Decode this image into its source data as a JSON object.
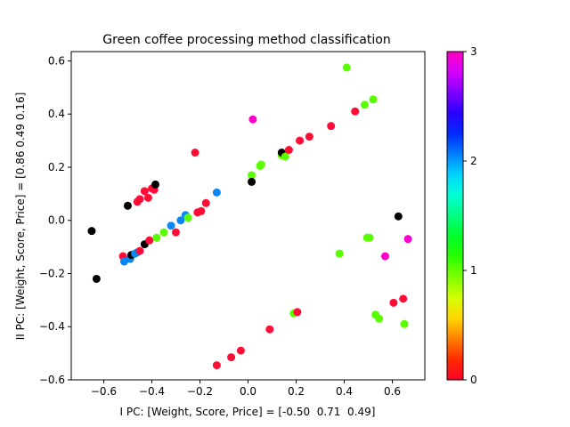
{
  "chart_data": {
    "type": "scatter",
    "title": "Green coffee processing method classification",
    "xlabel": "I PC: [Weight, Score, Price] = [-0.50  0.71  0.49]",
    "ylabel": "II PC: [Weight, Score, Price] = [0.86 0.49 0.16]",
    "xlim": [
      -0.735,
      0.735
    ],
    "ylim": [
      -0.6,
      0.635
    ],
    "xticks": [
      -0.6,
      -0.4,
      -0.2,
      0.0,
      0.2,
      0.4,
      0.6
    ],
    "xtick_labels": [
      "−0.6",
      "−0.4",
      "−0.2",
      "0.0",
      "0.2",
      "0.4",
      "0.6"
    ],
    "yticks": [
      -0.6,
      -0.4,
      -0.2,
      0.0,
      0.2,
      0.4,
      0.6
    ],
    "ytick_labels": [
      "−0.6",
      "−0.4",
      "−0.2",
      "0.0",
      "0.2",
      "0.4",
      "0.6"
    ],
    "grid": false,
    "colorbar": {
      "min": 0,
      "max": 3,
      "ticks": [
        0,
        1,
        2,
        3
      ],
      "tick_labels": [
        "0",
        "1",
        "2",
        "3"
      ],
      "colormap": "gist_rainbow",
      "stops": [
        "#ff0029",
        "#ff2a00",
        "#ff8000",
        "#ffd500",
        "#d4ff00",
        "#7fff00",
        "#29ff00",
        "#00ff2b",
        "#00ff80",
        "#00ffd5",
        "#00d4ff",
        "#007fff",
        "#002aff",
        "#2a00ff",
        "#7f00ff",
        "#d500ff",
        "#ff00bf"
      ]
    },
    "marker_colors": {
      "0": "#ff0d37",
      "1": "#59ff00",
      "2": "#0a86f5",
      "3": "#ff00cc",
      "other": "#000000"
    },
    "points": [
      {
        "x": -0.65,
        "y": -0.04,
        "c": "other"
      },
      {
        "x": -0.63,
        "y": -0.22,
        "c": "other"
      },
      {
        "x": -0.52,
        "y": -0.135,
        "c": 0
      },
      {
        "x": -0.515,
        "y": -0.155,
        "c": 2
      },
      {
        "x": -0.5,
        "y": 0.055,
        "c": "other"
      },
      {
        "x": -0.49,
        "y": -0.145,
        "c": 2
      },
      {
        "x": -0.485,
        "y": -0.13,
        "c": "other"
      },
      {
        "x": -0.47,
        "y": -0.125,
        "c": 2
      },
      {
        "x": -0.46,
        "y": -0.12,
        "c": 2
      },
      {
        "x": -0.45,
        "y": -0.115,
        "c": 0
      },
      {
        "x": -0.46,
        "y": 0.07,
        "c": 0
      },
      {
        "x": -0.45,
        "y": 0.08,
        "c": 0
      },
      {
        "x": -0.43,
        "y": -0.09,
        "c": "other"
      },
      {
        "x": -0.43,
        "y": 0.11,
        "c": 0
      },
      {
        "x": -0.415,
        "y": 0.085,
        "c": 0
      },
      {
        "x": -0.41,
        "y": -0.075,
        "c": 0
      },
      {
        "x": -0.4,
        "y": 0.12,
        "c": 0
      },
      {
        "x": -0.39,
        "y": 0.115,
        "c": 0
      },
      {
        "x": -0.385,
        "y": 0.135,
        "c": "other"
      },
      {
        "x": -0.38,
        "y": -0.065,
        "c": 1
      },
      {
        "x": -0.35,
        "y": -0.045,
        "c": 1
      },
      {
        "x": -0.32,
        "y": -0.02,
        "c": 2
      },
      {
        "x": -0.3,
        "y": -0.045,
        "c": 0
      },
      {
        "x": -0.28,
        "y": 0.0,
        "c": 2
      },
      {
        "x": -0.26,
        "y": 0.02,
        "c": 2
      },
      {
        "x": -0.25,
        "y": 0.01,
        "c": 1
      },
      {
        "x": -0.22,
        "y": 0.255,
        "c": 0
      },
      {
        "x": -0.21,
        "y": 0.03,
        "c": 0
      },
      {
        "x": -0.195,
        "y": 0.035,
        "c": 0
      },
      {
        "x": -0.175,
        "y": 0.065,
        "c": 0
      },
      {
        "x": -0.13,
        "y": 0.105,
        "c": 2
      },
      {
        "x": -0.13,
        "y": -0.545,
        "c": 0
      },
      {
        "x": -0.07,
        "y": -0.515,
        "c": 0
      },
      {
        "x": -0.03,
        "y": -0.49,
        "c": 0
      },
      {
        "x": 0.015,
        "y": 0.17,
        "c": 1
      },
      {
        "x": 0.015,
        "y": 0.145,
        "c": "other"
      },
      {
        "x": 0.02,
        "y": 0.38,
        "c": 3
      },
      {
        "x": 0.05,
        "y": 0.205,
        "c": 1
      },
      {
        "x": 0.055,
        "y": 0.21,
        "c": 1
      },
      {
        "x": 0.09,
        "y": -0.41,
        "c": 0
      },
      {
        "x": 0.14,
        "y": 0.245,
        "c": 1
      },
      {
        "x": 0.14,
        "y": 0.255,
        "c": "other"
      },
      {
        "x": 0.155,
        "y": 0.24,
        "c": 1
      },
      {
        "x": 0.17,
        "y": 0.265,
        "c": 0
      },
      {
        "x": 0.19,
        "y": -0.35,
        "c": 1
      },
      {
        "x": 0.205,
        "y": -0.345,
        "c": 0
      },
      {
        "x": 0.215,
        "y": 0.3,
        "c": 0
      },
      {
        "x": 0.255,
        "y": 0.315,
        "c": 0
      },
      {
        "x": 0.345,
        "y": 0.355,
        "c": 0
      },
      {
        "x": 0.38,
        "y": -0.125,
        "c": 1
      },
      {
        "x": 0.41,
        "y": 0.575,
        "c": 1
      },
      {
        "x": 0.445,
        "y": 0.41,
        "c": 0
      },
      {
        "x": 0.485,
        "y": 0.435,
        "c": 1
      },
      {
        "x": 0.495,
        "y": -0.065,
        "c": 1
      },
      {
        "x": 0.505,
        "y": -0.065,
        "c": 1
      },
      {
        "x": 0.52,
        "y": 0.455,
        "c": 1
      },
      {
        "x": 0.53,
        "y": -0.355,
        "c": 1
      },
      {
        "x": 0.545,
        "y": -0.37,
        "c": 1
      },
      {
        "x": 0.57,
        "y": -0.135,
        "c": 3
      },
      {
        "x": 0.605,
        "y": -0.31,
        "c": 0
      },
      {
        "x": 0.625,
        "y": 0.015,
        "c": "other"
      },
      {
        "x": 0.645,
        "y": -0.295,
        "c": 0
      },
      {
        "x": 0.65,
        "y": -0.39,
        "c": 1
      },
      {
        "x": 0.665,
        "y": -0.07,
        "c": 3
      }
    ]
  }
}
